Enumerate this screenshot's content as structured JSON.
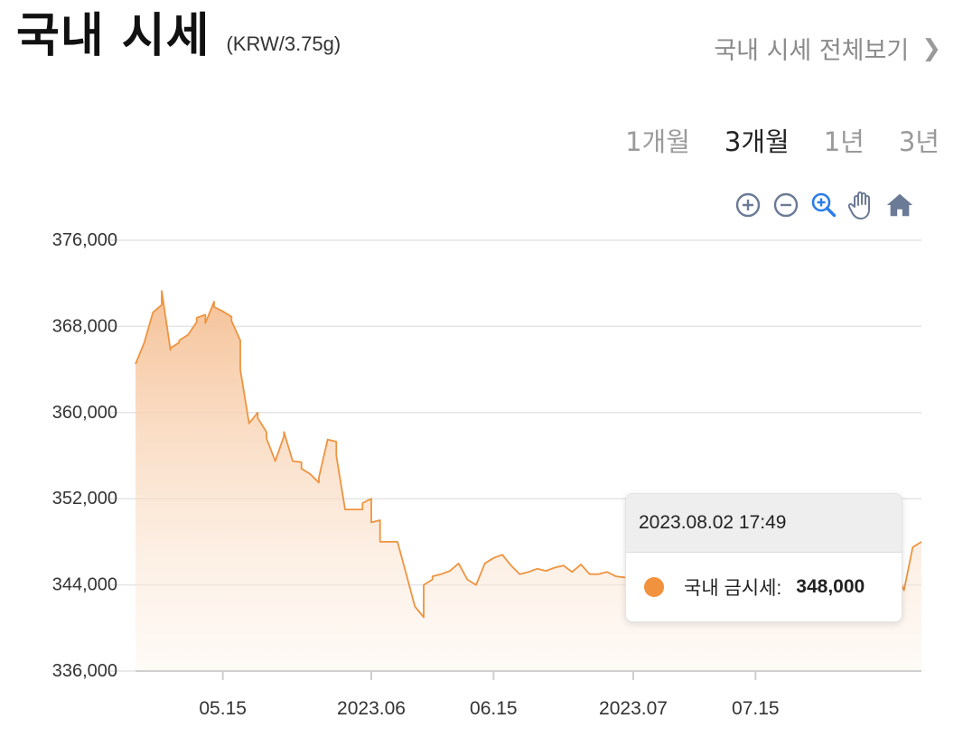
{
  "header": {
    "title": "국내 시세",
    "unit": "(KRW/3.75g)",
    "more_link": "국내 시세 전체보기"
  },
  "ranges": [
    "1개월",
    "3개월",
    "1년",
    "3년"
  ],
  "active_range": "3개월",
  "toolbar": [
    "zoom-in-icon",
    "zoom-out-icon",
    "magnifier-icon",
    "pan-hand-icon",
    "home-icon"
  ],
  "tooltip": {
    "datetime": "2023.08.02 17:49",
    "series_label": "국내 금시세:",
    "value": "348,000"
  },
  "colors": {
    "line": "#ee9440",
    "fill_top": "#f5c196",
    "tooltip_dot": "#f0923e",
    "toolbar_icon": "#6b7a96",
    "active_tool": "#2b7de9"
  },
  "chart_data": {
    "type": "area",
    "title": "",
    "xlabel": "",
    "ylabel": "",
    "x_range": [
      "2023-05-05",
      "2023-08-03"
    ],
    "ylim": [
      336000,
      376000
    ],
    "y_ticks": [
      336000,
      344000,
      352000,
      360000,
      368000,
      376000
    ],
    "y_tick_labels": [
      "336,000",
      "344,000",
      "352,000",
      "360,000",
      "368,000",
      "376,000"
    ],
    "x_ticks": [
      {
        "date": "2023-05-15",
        "label": "05.15"
      },
      {
        "date": "2023-06-01",
        "label": "2023.06"
      },
      {
        "date": "2023-06-15",
        "label": "06.15"
      },
      {
        "date": "2023-07-01",
        "label": "2023.07"
      },
      {
        "date": "2023-07-15",
        "label": "07.15"
      }
    ],
    "grid": true,
    "series": [
      {
        "x": [
          "2023-05-05",
          "2023-05-06",
          "2023-05-07",
          "2023-05-08",
          "2023-05-08",
          "2023-05-08",
          "2023-05-09",
          "2023-05-09",
          "2023-05-10",
          "2023-05-10",
          "2023-05-11",
          "2023-05-12",
          "2023-05-12",
          "2023-05-13",
          "2023-05-13",
          "2023-05-14",
          "2023-05-14",
          "2023-05-15",
          "2023-05-16",
          "2023-05-16",
          "2023-05-17",
          "2023-05-17",
          "2023-05-18",
          "2023-05-19",
          "2023-05-19",
          "2023-05-20",
          "2023-05-20",
          "2023-05-21",
          "2023-05-22",
          "2023-05-22",
          "2023-05-23",
          "2023-05-24",
          "2023-05-24",
          "2023-05-25",
          "2023-05-26",
          "2023-05-26",
          "2023-05-27",
          "2023-05-28",
          "2023-05-28",
          "2023-05-29",
          "2023-05-30",
          "2023-05-31",
          "2023-05-31",
          "2023-06-01",
          "2023-06-01",
          "2023-06-02",
          "2023-06-02",
          "2023-06-03",
          "2023-06-04",
          "2023-06-05",
          "2023-06-06",
          "2023-06-07",
          "2023-06-07",
          "2023-06-08",
          "2023-06-08",
          "2023-06-09",
          "2023-06-10",
          "2023-06-11",
          "2023-06-12",
          "2023-06-13",
          "2023-06-14",
          "2023-06-15",
          "2023-06-16",
          "2023-06-17",
          "2023-06-18",
          "2023-06-19",
          "2023-06-20",
          "2023-06-21",
          "2023-06-22",
          "2023-06-23",
          "2023-06-24",
          "2023-06-25",
          "2023-06-26",
          "2023-06-27",
          "2023-06-28",
          "2023-06-29",
          "2023-06-30",
          "2023-07-01",
          "2023-07-02",
          "2023-07-03",
          "2023-07-04",
          "2023-07-05",
          "2023-07-06",
          "2023-07-07",
          "2023-07-08",
          "2023-07-09",
          "2023-07-10",
          "2023-07-11",
          "2023-07-12",
          "2023-07-13",
          "2023-07-14",
          "2023-07-15",
          "2023-07-16",
          "2023-07-17",
          "2023-07-18",
          "2023-07-19",
          "2023-07-20",
          "2023-07-21",
          "2023-07-22",
          "2023-07-23",
          "2023-07-24",
          "2023-07-25",
          "2023-07-26",
          "2023-07-27",
          "2023-07-28",
          "2023-07-29",
          "2023-07-30",
          "2023-07-31",
          "2023-08-01",
          "2023-08-02",
          "2023-08-03"
        ],
        "values": [
          364500,
          366500,
          369300,
          370000,
          370500,
          371300,
          365800,
          366000,
          366500,
          366700,
          367200,
          368400,
          368800,
          369100,
          368300,
          370300,
          369800,
          369400,
          368900,
          368500,
          366700,
          364000,
          359000,
          360000,
          359500,
          358200,
          357600,
          355500,
          357800,
          358200,
          355500,
          355400,
          354800,
          354300,
          353500,
          354000,
          357500,
          357300,
          356000,
          351000,
          351000,
          351000,
          351600,
          352000,
          349800,
          350000,
          348000,
          348000,
          348000,
          345000,
          342000,
          341000,
          344000,
          344500,
          344800,
          345000,
          345300,
          346000,
          344500,
          344000,
          346000,
          346500,
          346800,
          345800,
          345000,
          345200,
          345500,
          345300,
          345600,
          345800,
          345200,
          345900,
          345000,
          345000,
          345200,
          344800,
          344700,
          344500,
          345000,
          344200,
          344300,
          344000,
          344500,
          345000,
          345200,
          344800,
          344000,
          344500,
          345000,
          345300,
          345800,
          345500,
          344200,
          343500,
          343800,
          344300,
          344500,
          344800,
          344000,
          344100,
          344400,
          345000,
          345800,
          346300,
          345500,
          344500,
          345000,
          345500,
          343500,
          347500,
          348000
        ]
      }
    ]
  }
}
